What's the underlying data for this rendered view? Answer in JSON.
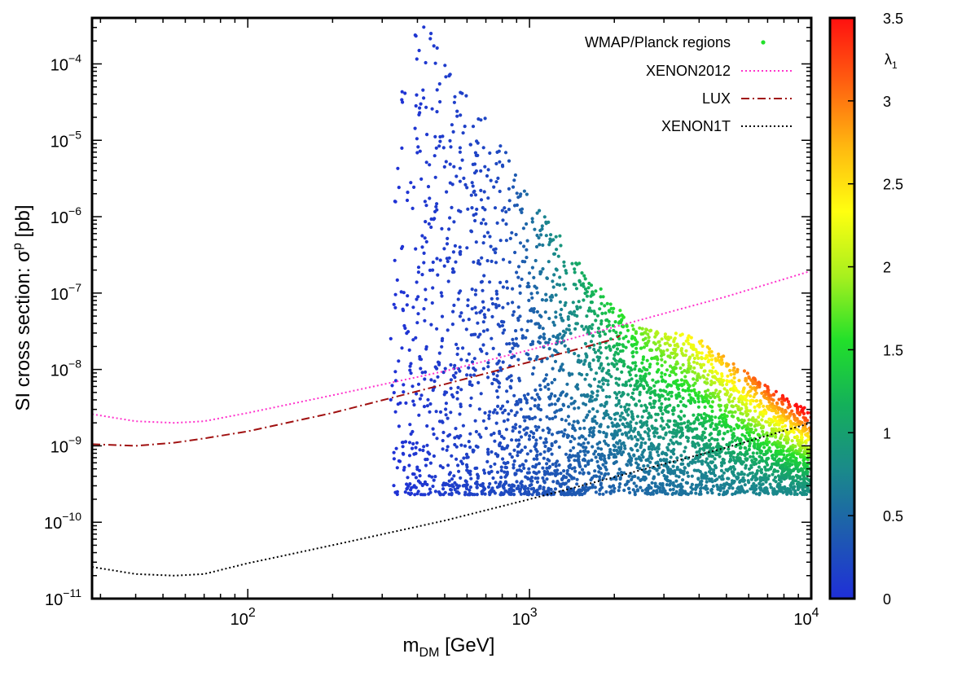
{
  "chart_data": {
    "type": "scatter",
    "xlabel": "m_DM [GeV]",
    "xlabel_main": "m",
    "xlabel_sub": "DM",
    "xlabel_rest": " [GeV]",
    "ylabel": "SI cross section: σ^p [pb]",
    "ylabel_main": "SI cross section: σ",
    "ylabel_sup": "p",
    "ylabel_rest": " [pb]",
    "x_scale": "log",
    "y_scale": "log",
    "xlim": [
      28,
      10000
    ],
    "ylim": [
      1e-11,
      0.0004
    ],
    "x_ticks": [
      {
        "value": 100,
        "base": "10",
        "exp": "2"
      },
      {
        "value": 1000,
        "base": "10",
        "exp": "3"
      },
      {
        "value": 10000,
        "base": "10",
        "exp": "4"
      }
    ],
    "y_ticks": [
      {
        "value": 1e-11,
        "base": "10",
        "exp": "−11"
      },
      {
        "value": 1e-10,
        "base": "10",
        "exp": "−10"
      },
      {
        "value": 1e-09,
        "base": "10",
        "exp": "−9"
      },
      {
        "value": 1e-08,
        "base": "10",
        "exp": "−8"
      },
      {
        "value": 1e-07,
        "base": "10",
        "exp": "−7"
      },
      {
        "value": 1e-06,
        "base": "10",
        "exp": "−6"
      },
      {
        "value": 1e-05,
        "base": "10",
        "exp": "−5"
      },
      {
        "value": 0.0001,
        "base": "10",
        "exp": "−4"
      }
    ],
    "grid": false,
    "legend_position": "top-right",
    "colorbar": {
      "label_main": "λ",
      "label_sub": "1",
      "range": [
        0,
        3.5
      ],
      "ticks": [
        "0",
        "0.5",
        "1",
        "1.5",
        "2",
        "2.5",
        "3",
        "3.5"
      ],
      "colormap": [
        "#1f2fd8",
        "#1e5bb0",
        "#1a8a8a",
        "#14b05a",
        "#22e02a",
        "#a8f01e",
        "#ffff10",
        "#ffb810",
        "#ff6010",
        "#ff1010"
      ]
    },
    "series": [
      {
        "name": "WMAP/Planck regions",
        "kind": "scatter",
        "legend_color": "#22e02a",
        "region": {
          "x_min": 320,
          "y_floor": 2.3e-10,
          "upper_envelope": [
            [
              320,
              5e-05
            ],
            [
              380,
              0.0004
            ],
            [
              500,
              0.0002
            ],
            [
              700,
              2e-05
            ],
            [
              1000,
              2e-06
            ],
            [
              1500,
              2.5e-07
            ],
            [
              2000,
              7e-08
            ],
            [
              2500,
              3.5e-08
            ],
            [
              3000,
              3e-08
            ],
            [
              3500,
              3e-08
            ],
            [
              4000,
              2.5e-08
            ],
            [
              5000,
              1.4e-08
            ],
            [
              7000,
              6e-09
            ],
            [
              10000,
              2.8e-09
            ]
          ]
        }
      },
      {
        "name": "XENON2012",
        "kind": "line",
        "color": "#ff33cc",
        "style": "dotted",
        "points": [
          [
            28,
            2.6e-09
          ],
          [
            40,
            2.1e-09
          ],
          [
            55,
            2e-09
          ],
          [
            70,
            2.1e-09
          ],
          [
            100,
            2.7e-09
          ],
          [
            200,
            4.6e-09
          ],
          [
            500,
            9.5e-09
          ],
          [
            1000,
            1.8e-08
          ],
          [
            2000,
            3.6e-08
          ],
          [
            5000,
            9e-08
          ],
          [
            10000,
            1.95e-07
          ]
        ]
      },
      {
        "name": "LUX",
        "kind": "line",
        "color": "#a01010",
        "style": "dashdot",
        "points": [
          [
            28,
            1.05e-09
          ],
          [
            40,
            1e-09
          ],
          [
            55,
            1.1e-09
          ],
          [
            70,
            1.25e-09
          ],
          [
            100,
            1.55e-09
          ],
          [
            200,
            2.7e-09
          ],
          [
            500,
            6.4e-09
          ],
          [
            1000,
            1.25e-08
          ],
          [
            2000,
            2.5e-08
          ],
          [
            2100,
            2.8e-08
          ]
        ]
      },
      {
        "name": "XENON1T",
        "kind": "line",
        "color": "#000000",
        "style": "dotted",
        "points": [
          [
            28,
            2.6e-11
          ],
          [
            40,
            2.1e-11
          ],
          [
            55,
            2e-11
          ],
          [
            70,
            2.1e-11
          ],
          [
            100,
            2.9e-11
          ],
          [
            200,
            5e-11
          ],
          [
            500,
            1.05e-10
          ],
          [
            1000,
            2e-10
          ],
          [
            2000,
            3.9e-10
          ],
          [
            5000,
            9.5e-10
          ],
          [
            10000,
            2e-09
          ]
        ]
      }
    ]
  }
}
